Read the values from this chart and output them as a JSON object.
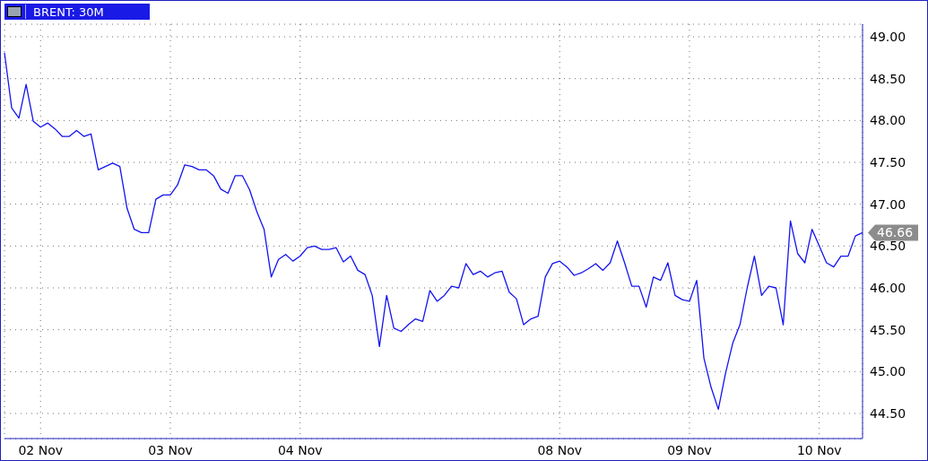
{
  "chart_data": {
    "type": "line",
    "title": "BRENT: 30M",
    "categories": [
      null,
      null,
      null,
      null,
      null,
      "02 Nov",
      null,
      null,
      null,
      null,
      null,
      null,
      null,
      null,
      null,
      null,
      null,
      null,
      null,
      null,
      null,
      null,
      null,
      "03 Nov",
      null,
      null,
      null,
      null,
      null,
      null,
      null,
      null,
      null,
      null,
      null,
      null,
      null,
      null,
      null,
      null,
      null,
      "04 Nov",
      null,
      null,
      null,
      null,
      null,
      null,
      null,
      null,
      null,
      null,
      null,
      null,
      null,
      null,
      null,
      null,
      null,
      null,
      null,
      null,
      null,
      null,
      null,
      null,
      null,
      null,
      null,
      null,
      null,
      null,
      null,
      null,
      null,
      null,
      null,
      "08 Nov",
      null,
      null,
      null,
      null,
      null,
      null,
      null,
      null,
      null,
      null,
      null,
      null,
      null,
      null,
      null,
      null,
      null,
      "09 Nov",
      null,
      null,
      null,
      null,
      null,
      null,
      null,
      null,
      null,
      null,
      null,
      null,
      null,
      null,
      null,
      null,
      null,
      "10 Nov",
      null,
      null,
      null,
      null,
      null,
      null
    ],
    "series": [
      {
        "color": "#1414f0",
        "values": [
          48.81,
          48.15,
          48.03,
          48.43,
          47.99,
          47.92,
          47.97,
          47.9,
          47.81,
          47.81,
          47.88,
          47.81,
          47.84,
          47.41,
          47.45,
          47.49,
          47.45,
          46.95,
          46.7,
          46.66,
          46.66,
          47.06,
          47.11,
          47.11,
          47.23,
          47.47,
          47.45,
          47.41,
          47.41,
          47.34,
          47.18,
          47.13,
          47.34,
          47.34,
          47.17,
          46.91,
          46.7,
          46.13,
          46.34,
          46.4,
          46.32,
          46.38,
          46.48,
          46.5,
          46.46,
          46.46,
          46.48,
          46.31,
          46.38,
          46.21,
          46.16,
          45.91,
          45.3,
          45.91,
          45.52,
          45.48,
          45.56,
          45.63,
          45.6,
          45.97,
          45.84,
          45.91,
          46.02,
          46.0,
          46.29,
          46.16,
          46.2,
          46.13,
          46.18,
          46.2,
          45.95,
          45.87,
          45.56,
          45.63,
          45.66,
          46.13,
          46.29,
          46.32,
          46.25,
          46.15,
          46.18,
          46.23,
          46.29,
          46.21,
          46.3,
          46.56,
          46.3,
          46.02,
          46.02,
          45.77,
          46.13,
          46.09,
          46.3,
          45.91,
          45.86,
          45.84,
          46.09,
          45.16,
          44.81,
          44.55,
          44.98,
          45.34,
          45.56,
          46.0,
          46.38,
          45.91,
          46.02,
          46.0,
          45.56,
          46.8,
          46.41,
          46.3,
          46.7,
          46.5,
          46.3,
          46.25,
          46.38,
          46.38,
          46.62,
          46.66
        ]
      }
    ],
    "ylim": [
      44.2,
      49.15
    ],
    "yticks": [
      {
        "value": 44.5,
        "label": "44.50"
      },
      {
        "value": 45,
        "label": "45.00"
      },
      {
        "value": 45.5,
        "label": "45.50"
      },
      {
        "value": 46,
        "label": "46.00"
      },
      {
        "value": 46.5,
        "label": "46.50"
      },
      {
        "value": 47,
        "label": "47.00"
      },
      {
        "value": 47.5,
        "label": "47.50"
      },
      {
        "value": 48,
        "label": "48.00"
      },
      {
        "value": 48.5,
        "label": "48.50"
      },
      {
        "value": 49,
        "label": "49.00"
      }
    ],
    "annotations": [
      "46.66"
    ],
    "grid": true,
    "marker": "none",
    "line_style": "solid"
  }
}
